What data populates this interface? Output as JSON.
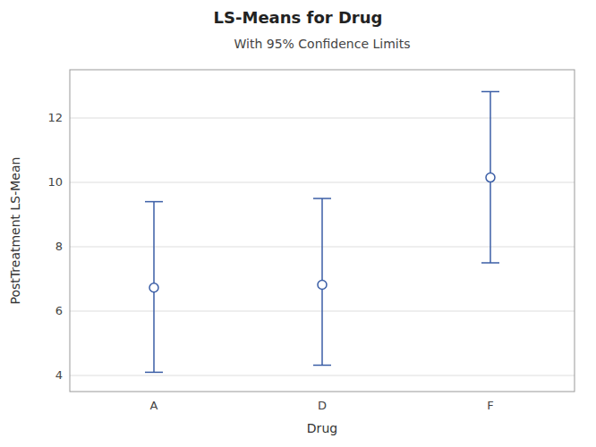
{
  "chart_data": {
    "type": "errorbar",
    "title": "LS-Means for Drug",
    "subtitle": "With 95% Confidence Limits",
    "xlabel": "Drug",
    "ylabel": "PostTreatment LS-Mean",
    "categories": [
      "A",
      "D",
      "F"
    ],
    "values": [
      6.73,
      6.82,
      10.15
    ],
    "ci_lower": [
      4.1,
      4.32,
      7.5
    ],
    "ci_upper": [
      9.4,
      9.5,
      12.82
    ],
    "color": "#3b5ea6",
    "marker": "circle",
    "ylim": [
      3.5,
      13.5
    ],
    "yticks": [
      4,
      6,
      8,
      10,
      12
    ],
    "grid": true
  }
}
